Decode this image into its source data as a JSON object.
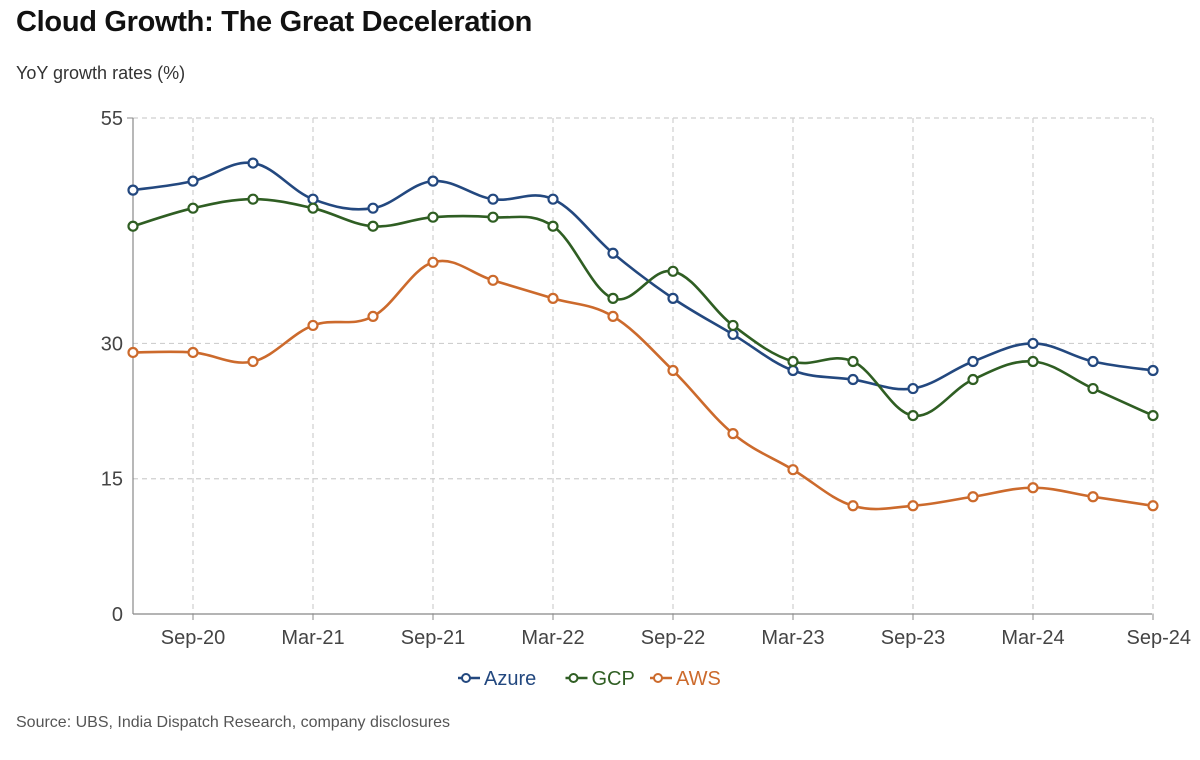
{
  "header": {
    "title": "Cloud Growth: The Great Deceleration",
    "subtitle": "YoY growth rates (%)"
  },
  "footer": {
    "source": "Source: UBS, India Dispatch Research, company disclosures"
  },
  "chart_data": {
    "type": "line",
    "x": [
      "Jun-20",
      "Sep-20",
      "Dec-20",
      "Mar-21",
      "Jun-21",
      "Sep-21",
      "Dec-21",
      "Mar-22",
      "Jun-22",
      "Sep-22",
      "Dec-22",
      "Mar-23",
      "Jun-23",
      "Sep-23",
      "Dec-23",
      "Mar-24",
      "Jun-24",
      "Sep-24"
    ],
    "x_tick_labels": [
      "Sep-20",
      "Mar-21",
      "Sep-21",
      "Mar-22",
      "Sep-22",
      "Mar-23",
      "Sep-23",
      "Mar-24",
      "Sep-24"
    ],
    "y_ticks": [
      0,
      15,
      30,
      55
    ],
    "ylim": [
      0,
      55
    ],
    "grid": true,
    "legend_position": "bottom-center",
    "series": [
      {
        "name": "Azure",
        "color": "#23487f",
        "values": [
          47,
          48,
          50,
          46,
          45,
          48,
          46,
          46,
          40,
          35,
          31,
          27,
          26,
          25,
          28,
          30,
          28,
          27
        ]
      },
      {
        "name": "GCP",
        "color": "#2f5e23",
        "values": [
          43,
          45,
          46,
          45,
          43,
          44,
          44,
          43,
          35,
          38,
          32,
          28,
          28,
          22,
          26,
          28,
          25,
          22
        ]
      },
      {
        "name": "AWS",
        "color": "#cc6a2c",
        "values": [
          29,
          29,
          28,
          32,
          33,
          39,
          37,
          35,
          33,
          27,
          20,
          16,
          12,
          12,
          13,
          14,
          13,
          12
        ]
      }
    ]
  }
}
